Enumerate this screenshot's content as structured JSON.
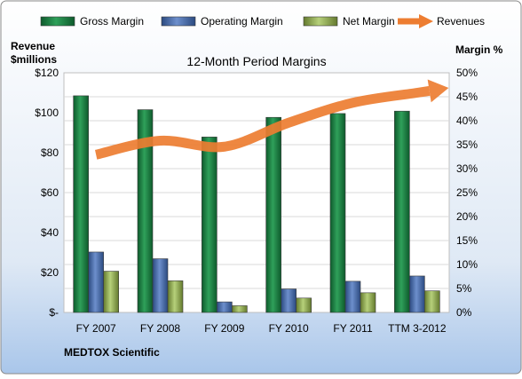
{
  "chart_data": {
    "type": "bar",
    "title": "12-Month Period Margins",
    "left_axis_label_line1": "Revenue",
    "left_axis_label_line2": "$millions",
    "right_axis_label": "Margin %",
    "footer": "MEDTOX Scientific",
    "categories": [
      "FY 2007",
      "FY 2008",
      "FY 2009",
      "FY 2010",
      "FY 2011",
      "TTM 3-2012"
    ],
    "left_ylim": [
      0,
      120
    ],
    "right_ylim": [
      0,
      50
    ],
    "left_ticks": [
      "$-",
      "$20",
      "$40",
      "$60",
      "$80",
      "$100",
      "$120"
    ],
    "right_ticks": [
      "0%",
      "5%",
      "10%",
      "15%",
      "20%",
      "25%",
      "30%",
      "35%",
      "40%",
      "45%",
      "50%"
    ],
    "grid": true,
    "legend_position": "top",
    "series": [
      {
        "name": "Gross Margin",
        "kind": "bar",
        "axis": "right",
        "color": "#1e8a4a",
        "values": [
          45.2,
          42.3,
          36.6,
          40.7,
          41.5,
          42.0
        ]
      },
      {
        "name": "Operating Margin",
        "kind": "bar",
        "axis": "right",
        "color": "#4a6fb0",
        "values": [
          12.6,
          11.2,
          2.2,
          4.9,
          6.5,
          7.6
        ]
      },
      {
        "name": "Net Margin",
        "kind": "bar",
        "axis": "right",
        "color": "#9bbb59",
        "values": [
          8.6,
          6.6,
          1.4,
          3.0,
          4.1,
          4.5
        ]
      },
      {
        "name": "Revenues",
        "kind": "line",
        "axis": "left",
        "color": "#ed7d31",
        "values": [
          79,
          86,
          83,
          95,
          105,
          110
        ]
      }
    ]
  }
}
